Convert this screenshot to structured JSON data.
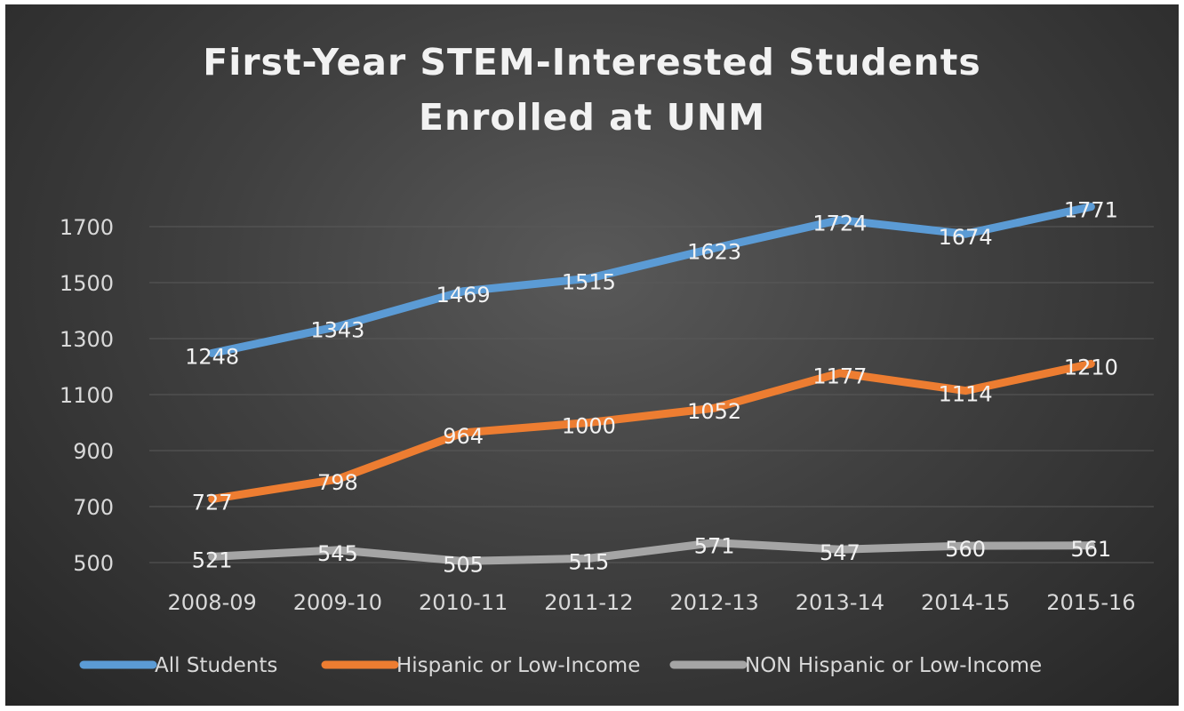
{
  "chart_data": {
    "type": "line",
    "title": "First-Year STEM-Interested Students Enrolled at UNM",
    "title_lines": [
      "First-Year STEM-Interested Students",
      "Enrolled at UNM"
    ],
    "categories": [
      "2008-09",
      "2009-10",
      "2010-11",
      "2011-12",
      "2012-13",
      "2013-14",
      "2014-15",
      "2015-16"
    ],
    "series": [
      {
        "name": "All Students",
        "color": "#5b9bd5",
        "values": [
          1248,
          1343,
          1469,
          1515,
          1623,
          1724,
          1674,
          1771
        ]
      },
      {
        "name": "Hispanic or Low-Income",
        "color": "#ed7d31",
        "values": [
          727,
          798,
          964,
          1000,
          1052,
          1177,
          1114,
          1210
        ]
      },
      {
        "name": "NON Hispanic or Low-Income",
        "color": "#a5a5a5",
        "values": [
          521,
          545,
          505,
          515,
          571,
          547,
          560,
          561
        ]
      }
    ],
    "yticks": [
      500,
      700,
      900,
      1100,
      1300,
      1500,
      1700
    ],
    "ylim": [
      500,
      1800
    ],
    "grid": true,
    "legend_position": "bottom",
    "data_labels": true,
    "background": "#404040"
  }
}
